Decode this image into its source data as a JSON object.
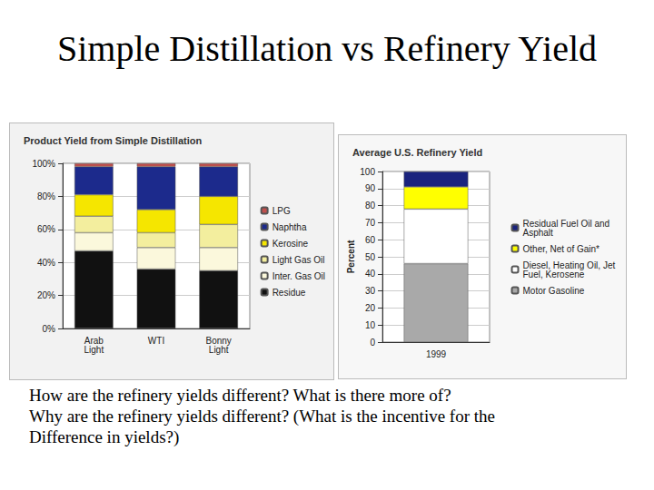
{
  "title": "Simple Distillation vs Refinery Yield",
  "text": [
    "How are the refinery yields different?  What is there more of?",
    "Why are the refinery yields different? (What is the incentive for the",
    "Difference in yields?)"
  ],
  "chart_data": [
    {
      "type": "bar",
      "title": "Product Yield from Simple Distillation",
      "stacked": true,
      "grid": true,
      "legend": "right",
      "categories": [
        "Arab Light",
        "WTI",
        "Bonny Light"
      ],
      "ylim": [
        0,
        100
      ],
      "yticks": [
        {
          "value": 0,
          "label": "0%"
        },
        {
          "value": 20,
          "label": "20%"
        },
        {
          "value": 40,
          "label": "40%"
        },
        {
          "value": 60,
          "label": "60%"
        },
        {
          "value": 80,
          "label": "80%"
        },
        {
          "value": 100,
          "label": "100%"
        }
      ],
      "series": [
        {
          "name": "Residue",
          "color": "#111111",
          "values": [
            47,
            36,
            35
          ]
        },
        {
          "name": "Inter. Gas Oil",
          "color": "#fbf8dc",
          "values": [
            11,
            13,
            14
          ]
        },
        {
          "name": "Light Gas Oil",
          "color": "#f3ee9e",
          "values": [
            10,
            9,
            14
          ]
        },
        {
          "name": "Kerosine",
          "color": "#f5e600",
          "values": [
            13,
            14,
            17
          ]
        },
        {
          "name": "Naphtha",
          "color": "#1c2a8c",
          "values": [
            17,
            26,
            18
          ]
        },
        {
          "name": "LPG",
          "color": "#c0504d",
          "values": [
            2,
            2,
            2
          ]
        }
      ]
    },
    {
      "type": "bar",
      "title": "Average U.S. Refinery Yield",
      "stacked": true,
      "grid": true,
      "legend": "right",
      "ylabel": "Percent",
      "categories": [
        "1999"
      ],
      "ylim": [
        0,
        100
      ],
      "yticks": [
        0,
        10,
        20,
        30,
        40,
        50,
        60,
        70,
        80,
        90,
        100
      ],
      "series": [
        {
          "name": "Motor Gasoline",
          "color": "#a9a9a9",
          "values": [
            46
          ]
        },
        {
          "name": "Diesel, Heating Oil, Jet Fuel, Kerosene",
          "color": "#ffffff",
          "values": [
            32
          ]
        },
        {
          "name": "Other, Net of Gain*",
          "color": "#ffff00",
          "values": [
            13
          ]
        },
        {
          "name": "Residual Fuel Oil and Asphalt",
          "color": "#1a237e",
          "values": [
            9
          ]
        }
      ]
    }
  ]
}
